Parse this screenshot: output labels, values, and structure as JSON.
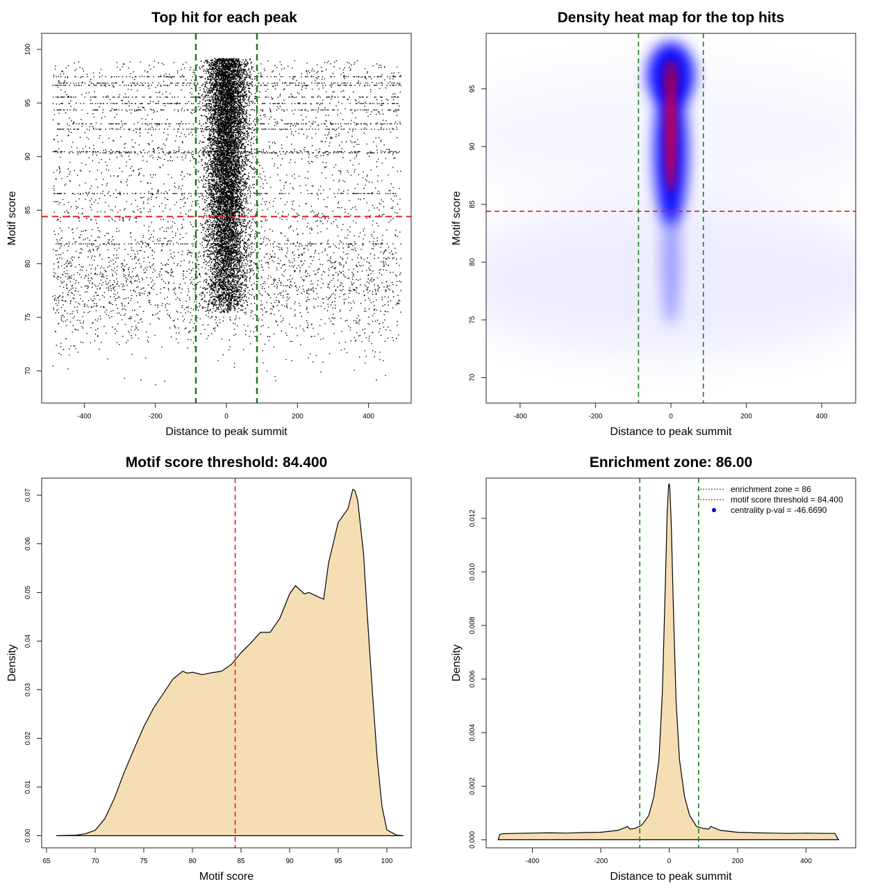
{
  "colors": {
    "red_line": "#e31a1c",
    "green_line": "#1a7a1a",
    "fill": "#f5deb3",
    "heat_low": "#ffffff",
    "heat_mid": "#0000ff",
    "heat_high": "#ff0000"
  },
  "chart_data": [
    {
      "id": "scatter",
      "type": "scatter",
      "title": "Top hit for each peak",
      "xlabel": "Distance to peak summit",
      "ylabel": "Motif score",
      "xlim": [
        -520,
        520
      ],
      "ylim": [
        67,
        101.5
      ],
      "xticks": [
        -400,
        -200,
        0,
        200,
        400
      ],
      "yticks": [
        70,
        75,
        80,
        85,
        90,
        95,
        100
      ],
      "threshold_y": 84.4,
      "zone_x": [
        -86,
        86
      ],
      "x_range": [
        -490,
        490
      ],
      "dense_core": {
        "x_center": 0,
        "x_halfwidth": 40,
        "y_range": [
          75.5,
          99.2
        ]
      },
      "banded_scores": [
        97.5,
        96.9,
        96.7,
        95.6,
        95.0,
        94.4,
        93.1,
        92.6,
        90.5,
        90.4,
        86.6,
        81.9
      ]
    },
    {
      "id": "heatmap",
      "type": "heatmap",
      "title": "Density heat map for the top hits",
      "xlabel": "Distance to peak summit",
      "ylabel": "Motif score",
      "xlim": [
        -490,
        490
      ],
      "ylim": [
        67.8,
        99.8
      ],
      "xticks": [
        -400,
        -200,
        0,
        200,
        400
      ],
      "yticks": [
        70,
        75,
        80,
        85,
        90,
        95
      ],
      "threshold_y": 84.4,
      "zone_x": [
        -86,
        86
      ]
    },
    {
      "id": "score_density",
      "type": "area",
      "title": "Motif score threshold: 84.400",
      "xlabel": "Motif score",
      "ylabel": "Density",
      "xlim": [
        64.5,
        102.5
      ],
      "ylim": [
        -0.0025,
        0.0735
      ],
      "xticks": [
        65,
        70,
        75,
        80,
        85,
        90,
        95,
        100
      ],
      "yticks": [
        0.0,
        0.01,
        0.02,
        0.03,
        0.04,
        0.05,
        0.06,
        0.07
      ],
      "ytick_labels": [
        "0.00",
        "0.01",
        "0.02",
        "0.03",
        "0.04",
        "0.05",
        "0.06",
        "0.07"
      ],
      "threshold_x": 84.4,
      "x": [
        66,
        68,
        69,
        70,
        71,
        72,
        73,
        74,
        75,
        76,
        77,
        78,
        79,
        79.5,
        80,
        81,
        82,
        83,
        84,
        85,
        86,
        87,
        88,
        89,
        90,
        90.6,
        91.5,
        92,
        92.6,
        93.5,
        94,
        95,
        96,
        96.5,
        96.7,
        97,
        97.6,
        98,
        98.5,
        99,
        99.5,
        100,
        101,
        101.7
      ],
      "y": [
        0.0,
        0.0001,
        0.0004,
        0.0011,
        0.0035,
        0.0078,
        0.0131,
        0.0178,
        0.0224,
        0.0262,
        0.0292,
        0.0322,
        0.0338,
        0.0334,
        0.0336,
        0.0331,
        0.0335,
        0.0338,
        0.0352,
        0.0376,
        0.0396,
        0.0418,
        0.0418,
        0.0447,
        0.0497,
        0.0514,
        0.0497,
        0.05,
        0.0494,
        0.0486,
        0.056,
        0.0644,
        0.0672,
        0.0712,
        0.071,
        0.069,
        0.058,
        0.045,
        0.03,
        0.016,
        0.006,
        0.0012,
        0.0001,
        0.0
      ]
    },
    {
      "id": "distance_density",
      "type": "area",
      "title": "Enrichment zone: 86.00",
      "xlabel": "Distance to peak summit",
      "ylabel": "Density",
      "xlim": [
        -535,
        545
      ],
      "ylim": [
        -0.0003,
        0.0135
      ],
      "xticks": [
        -400,
        -200,
        0,
        200,
        400
      ],
      "yticks": [
        0.0,
        0.002,
        0.004,
        0.006,
        0.008,
        0.01,
        0.012
      ],
      "ytick_labels": [
        "0.000",
        "0.002",
        "0.004",
        "0.006",
        "0.008",
        "0.010",
        "0.012"
      ],
      "zone_x": [
        -86,
        86
      ],
      "x": [
        -500,
        -495,
        -485,
        -450,
        -400,
        -350,
        -300,
        -250,
        -200,
        -150,
        -130,
        -122,
        -115,
        -100,
        -80,
        -60,
        -45,
        -30,
        -20,
        -12,
        -6,
        -2,
        0,
        2,
        6,
        12,
        20,
        30,
        45,
        60,
        80,
        100,
        115,
        122,
        130,
        150,
        200,
        250,
        300,
        350,
        400,
        450,
        485,
        490,
        495
      ],
      "y": [
        0.0,
        0.0002,
        0.00023,
        0.00024,
        0.00025,
        0.00026,
        0.00025,
        0.00027,
        0.00028,
        0.00035,
        0.00045,
        0.0005,
        0.0004,
        0.00042,
        0.00055,
        0.0009,
        0.0016,
        0.003,
        0.0055,
        0.0092,
        0.0122,
        0.0132,
        0.0133,
        0.0131,
        0.0118,
        0.0088,
        0.0052,
        0.003,
        0.0016,
        0.0009,
        0.0005,
        0.00042,
        0.0004,
        0.0005,
        0.00045,
        0.00035,
        0.00028,
        0.00026,
        0.00025,
        0.00024,
        0.00025,
        0.00024,
        0.00024,
        0.0001,
        0.0
      ],
      "legend": [
        {
          "label": "enrichment zone = 86",
          "style": "dotted",
          "color": "#1a7a1a"
        },
        {
          "label": "motif score threshold = 84.400",
          "style": "dotted",
          "color": "#e31a1c"
        },
        {
          "label": "centrality p-val = -46.6690",
          "style": "point",
          "color": "#0000cc"
        }
      ],
      "legend_position": "top-right"
    }
  ]
}
